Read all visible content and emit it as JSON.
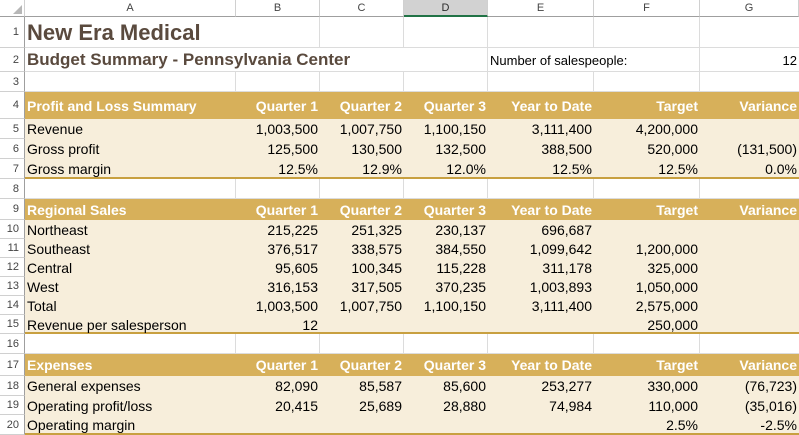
{
  "columns": [
    "A",
    "B",
    "C",
    "D",
    "E",
    "F",
    "G"
  ],
  "selected_column": "D",
  "rows": [
    "1",
    "2",
    "3",
    "4",
    "5",
    "6",
    "7",
    "8",
    "9",
    "10",
    "11",
    "12",
    "13",
    "14",
    "15",
    "16",
    "17",
    "18",
    "19",
    "20"
  ],
  "title": "New Era Medical",
  "subtitle": "Budget Summary - Pennsylvania Center",
  "salespeople_label": "Number of salespeople:",
  "salespeople_value": "12",
  "headers": [
    "Quarter 1",
    "Quarter 2",
    "Quarter 3",
    "Year to Date",
    "Target",
    "Variance"
  ],
  "sections": {
    "profit_loss": {
      "heading": "Profit and Loss Summary",
      "rows": [
        {
          "label": "Revenue",
          "values": [
            "1,003,500",
            "1,007,750",
            "1,100,150",
            "3,111,400",
            "4,200,000",
            ""
          ]
        },
        {
          "label": "Gross profit",
          "values": [
            "125,500",
            "130,500",
            "132,500",
            "388,500",
            "520,000",
            "(131,500)"
          ]
        },
        {
          "label": "Gross margin",
          "values": [
            "12.5%",
            "12.9%",
            "12.0%",
            "12.5%",
            "12.5%",
            "0.0%"
          ]
        }
      ]
    },
    "regional": {
      "heading": "Regional Sales",
      "rows": [
        {
          "label": "Northeast",
          "values": [
            "215,225",
            "251,325",
            "230,137",
            "696,687",
            "",
            ""
          ]
        },
        {
          "label": "Southeast",
          "values": [
            "376,517",
            "338,575",
            "384,550",
            "1,099,642",
            "1,200,000",
            ""
          ]
        },
        {
          "label": "Central",
          "values": [
            "95,605",
            "100,345",
            "115,228",
            "311,178",
            "325,000",
            ""
          ]
        },
        {
          "label": "West",
          "values": [
            "316,153",
            "317,505",
            "370,235",
            "1,003,893",
            "1,050,000",
            ""
          ]
        },
        {
          "label": "Total",
          "values": [
            "1,003,500",
            "1,007,750",
            "1,100,150",
            "3,111,400",
            "2,575,000",
            ""
          ]
        },
        {
          "label": "Revenue per salesperson",
          "values": [
            "12",
            "",
            "",
            "",
            "250,000",
            ""
          ]
        }
      ]
    },
    "expenses": {
      "heading": "Expenses",
      "rows": [
        {
          "label": "General expenses",
          "values": [
            "82,090",
            "85,587",
            "85,600",
            "253,277",
            "330,000",
            "(76,723)"
          ]
        },
        {
          "label": "Operating profit/loss",
          "values": [
            "20,415",
            "25,689",
            "28,880",
            "74,984",
            "110,000",
            "(35,016)"
          ]
        },
        {
          "label": "Operating margin",
          "values": [
            "",
            "",
            "",
            "",
            "2.5%",
            "-2.5%"
          ]
        }
      ]
    }
  }
}
